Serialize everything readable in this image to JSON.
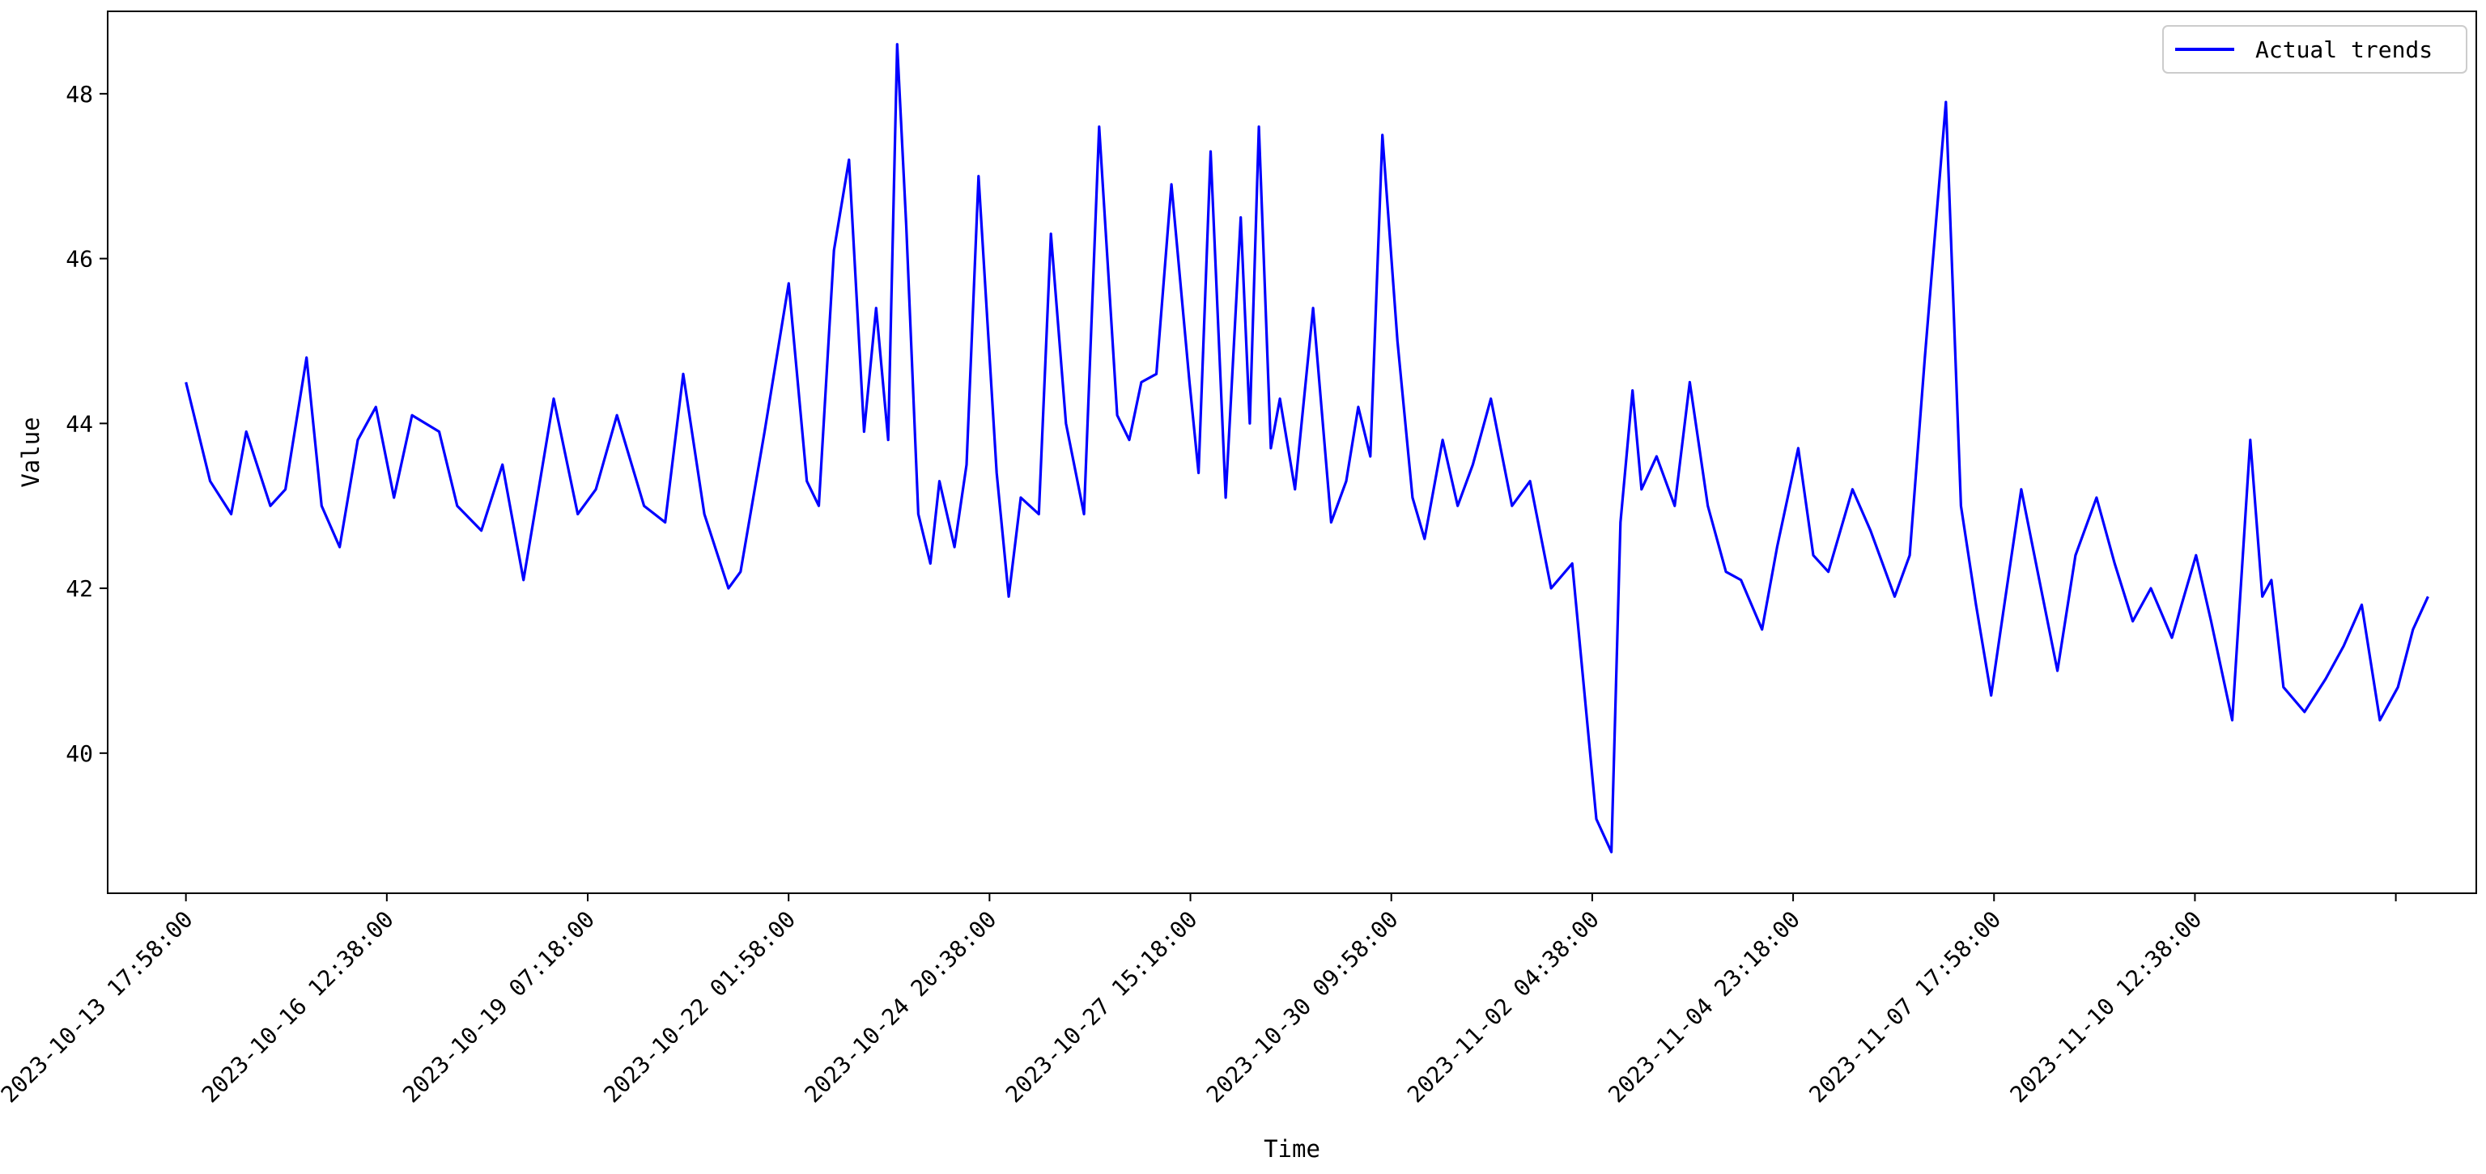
{
  "chart_data": {
    "type": "line",
    "title": "",
    "xlabel": "Time",
    "ylabel": "Value",
    "x_type": "datetime",
    "xlim": [
      "2023-10-12 16:00",
      "2023-11-14 10:00"
    ],
    "ylim": [
      38.3,
      49.0
    ],
    "x_ticks": [
      "2023-10-13 17:58:00",
      "2023-10-16 12:38:00",
      "2023-10-19 07:18:00",
      "2023-10-22 01:58:00",
      "2023-10-24 20:38:00",
      "2023-10-27 15:18:00",
      "2023-10-30 09:58:00",
      "2023-11-02 04:38:00",
      "2023-11-04 23:18:00",
      "2023-11-07 17:58:00",
      "2023-11-10 12:38:00"
    ],
    "y_ticks": [
      40,
      42,
      44,
      46,
      48
    ],
    "grid": false,
    "legend_position": "upper right",
    "series": [
      {
        "name": "Actual trends",
        "color": "#0000ff",
        "x": [
          "2023-10-13 17:58",
          "2023-10-14 02:00",
          "2023-10-14 09:00",
          "2023-10-14 14:00",
          "2023-10-14 22:00",
          "2023-10-15 03:00",
          "2023-10-15 10:00",
          "2023-10-15 15:00",
          "2023-10-15 21:00",
          "2023-10-16 03:00",
          "2023-10-16 09:00",
          "2023-10-16 15:00",
          "2023-10-16 21:00",
          "2023-10-17 06:00",
          "2023-10-17 12:00",
          "2023-10-17 20:00",
          "2023-10-18 03:00",
          "2023-10-18 10:00",
          "2023-10-18 20:00",
          "2023-10-19 04:00",
          "2023-10-19 10:00",
          "2023-10-19 17:00",
          "2023-10-20 02:00",
          "2023-10-20 09:00",
          "2023-10-20 15:00",
          "2023-10-20 22:00",
          "2023-10-21 06:00",
          "2023-10-21 10:00",
          "2023-10-21 18:00",
          "2023-10-22 02:00",
          "2023-10-22 08:00",
          "2023-10-22 12:00",
          "2023-10-22 17:00",
          "2023-10-22 22:00",
          "2023-10-23 03:00",
          "2023-10-23 07:00",
          "2023-10-23 11:00",
          "2023-10-23 14:00",
          "2023-10-23 17:00",
          "2023-10-23 21:00",
          "2023-10-24 01:00",
          "2023-10-24 04:00",
          "2023-10-24 09:00",
          "2023-10-24 13:00",
          "2023-10-24 17:00",
          "2023-10-24 23:00",
          "2023-10-25 03:00",
          "2023-10-25 07:00",
          "2023-10-25 13:00",
          "2023-10-25 17:00",
          "2023-10-25 22:00",
          "2023-10-26 04:00",
          "2023-10-26 09:00",
          "2023-10-26 15:00",
          "2023-10-26 19:00",
          "2023-10-26 23:00",
          "2023-10-27 04:00",
          "2023-10-27 09:00",
          "2023-10-27 15:00",
          "2023-10-27 18:00",
          "2023-10-27 22:00",
          "2023-10-28 03:00",
          "2023-10-28 08:00",
          "2023-10-28 11:00",
          "2023-10-28 14:00",
          "2023-10-28 18:00",
          "2023-10-28 21:00",
          "2023-10-29 02:00",
          "2023-10-29 08:00",
          "2023-10-29 14:00",
          "2023-10-29 19:00",
          "2023-10-29 23:00",
          "2023-10-30 03:00",
          "2023-10-30 07:00",
          "2023-10-30 12:00",
          "2023-10-30 17:00",
          "2023-10-30 21:00",
          "2023-10-31 03:00",
          "2023-10-31 08:00",
          "2023-10-31 13:00",
          "2023-10-31 19:00",
          "2023-11-01 02:00",
          "2023-11-01 08:00",
          "2023-11-01 15:00",
          "2023-11-01 22:00",
          "2023-11-02 06:00",
          "2023-11-02 11:00",
          "2023-11-02 14:00",
          "2023-11-02 18:00",
          "2023-11-02 21:00",
          "2023-11-03 02:00",
          "2023-11-03 08:00",
          "2023-11-03 13:00",
          "2023-11-03 19:00",
          "2023-11-04 01:00",
          "2023-11-04 06:00",
          "2023-11-04 13:00",
          "2023-11-04 18:00",
          "2023-11-05 01:00",
          "2023-11-05 06:00",
          "2023-11-05 11:00",
          "2023-11-05 19:00",
          "2023-11-06 01:00",
          "2023-11-06 09:00",
          "2023-11-06 14:00",
          "2023-11-06 19:00",
          "2023-11-07 02:00",
          "2023-11-07 07:00",
          "2023-11-07 12:00",
          "2023-11-07 17:00",
          "2023-11-07 21:00",
          "2023-11-08 03:00",
          "2023-11-08 09:00",
          "2023-11-08 15:00",
          "2023-11-08 21:00",
          "2023-11-09 04:00",
          "2023-11-09 10:00",
          "2023-11-09 16:00",
          "2023-11-09 22:00",
          "2023-11-10 05:00",
          "2023-11-10 13:00",
          "2023-11-10 18:00",
          "2023-11-11 01:00",
          "2023-11-11 07:00",
          "2023-11-11 11:00",
          "2023-11-11 14:00",
          "2023-11-11 18:00",
          "2023-11-12 01:00",
          "2023-11-12 08:00",
          "2023-11-12 14:00",
          "2023-11-12 20:00",
          "2023-11-13 02:00",
          "2023-11-13 08:00",
          "2023-11-13 13:00",
          "2023-11-13 18:00"
        ],
        "values": [
          44.5,
          43.3,
          42.9,
          43.9,
          43.0,
          43.2,
          44.8,
          43.0,
          42.5,
          43.8,
          44.2,
          43.1,
          44.1,
          43.9,
          43.0,
          42.7,
          43.5,
          42.1,
          44.3,
          42.9,
          43.2,
          44.1,
          43.0,
          42.8,
          44.6,
          42.9,
          42.0,
          42.2,
          43.9,
          45.7,
          43.3,
          43.0,
          46.1,
          47.2,
          43.9,
          45.4,
          43.8,
          48.6,
          46.4,
          42.9,
          42.3,
          43.3,
          42.5,
          43.5,
          47.0,
          43.4,
          41.9,
          43.1,
          42.9,
          46.3,
          44.0,
          42.9,
          47.6,
          44.1,
          43.8,
          44.5,
          44.6,
          46.9,
          44.5,
          43.4,
          47.3,
          43.1,
          46.5,
          44.0,
          47.6,
          43.7,
          44.3,
          43.2,
          45.4,
          42.8,
          43.3,
          44.2,
          43.6,
          47.5,
          45.0,
          43.1,
          42.6,
          43.8,
          43.0,
          43.5,
          44.3,
          43.0,
          43.3,
          42.0,
          42.3,
          39.2,
          38.8,
          42.8,
          44.4,
          43.2,
          43.6,
          43.0,
          44.5,
          43.0,
          42.2,
          42.1,
          41.5,
          42.5,
          43.7,
          42.4,
          42.2,
          43.2,
          42.7,
          41.9,
          42.4,
          44.8,
          47.9,
          43.0,
          41.8,
          40.7,
          41.7,
          43.2,
          42.1,
          41.0,
          42.4,
          43.1,
          42.3,
          41.6,
          42.0,
          41.4,
          42.4,
          41.6,
          40.4,
          43.8,
          41.9,
          42.1,
          40.8,
          40.5,
          40.9,
          41.3,
          41.8,
          40.4,
          40.8,
          41.5,
          41.9
        ]
      }
    ]
  }
}
